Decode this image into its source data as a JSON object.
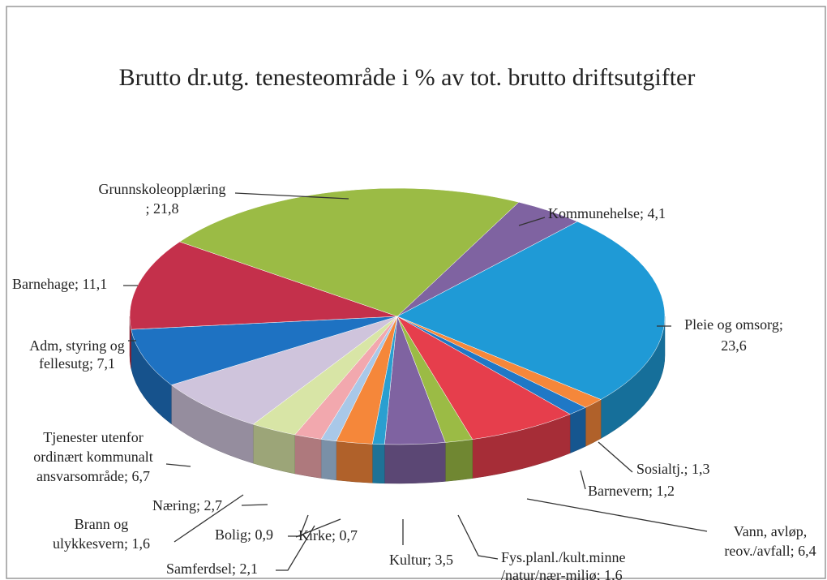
{
  "chart_data": {
    "type": "pie3d",
    "title": "Brutto dr.utg. tenesteområde i % av tot. brutto driftsutgifter",
    "values": [
      4.1,
      23.6,
      1.3,
      1.2,
      6.4,
      1.6,
      3.5,
      0.7,
      2.1,
      0.9,
      1.6,
      2.7,
      6.7,
      7.1,
      11.1,
      21.8
    ],
    "value_labels": [
      "Kommunehelse; 4,1",
      "Pleie og omsorg;\n23,6",
      "Sosialtj.; 1,3",
      "Barnevern; 1,2",
      "Vann, avløp,\nreov./avfall; 6,4",
      "Fys.planl./kult.minne\n/natur/nær-miljø; 1,6",
      "Kultur; 3,5",
      "Kirke; 0,7",
      "Samferdsel; 2,1",
      "Bolig; 0,9",
      "Brann og\nulykkesvern; 1,6",
      "Næring; 2,7",
      "Tjenester utenfor\nordinært kommunalt\nansvarsområde; 6,7",
      "Adm, styring og\nfellesutg; 7,1",
      "Barnehage; 11,1",
      "Grunnskoleopplæring\n; 21,8"
    ],
    "colors": [
      "#7f63a1",
      "#1f9ad6",
      "#f5873a",
      "#1f78c6",
      "#e63e4c",
      "#9bbb45",
      "#7f63a1",
      "#2a9fd0",
      "#f5873a",
      "#a9c8e8",
      "#f2a8ae",
      "#d8e5a6",
      "#cfc4dc",
      "#1e72c2",
      "#c4304b",
      "#9bbb45"
    ]
  }
}
